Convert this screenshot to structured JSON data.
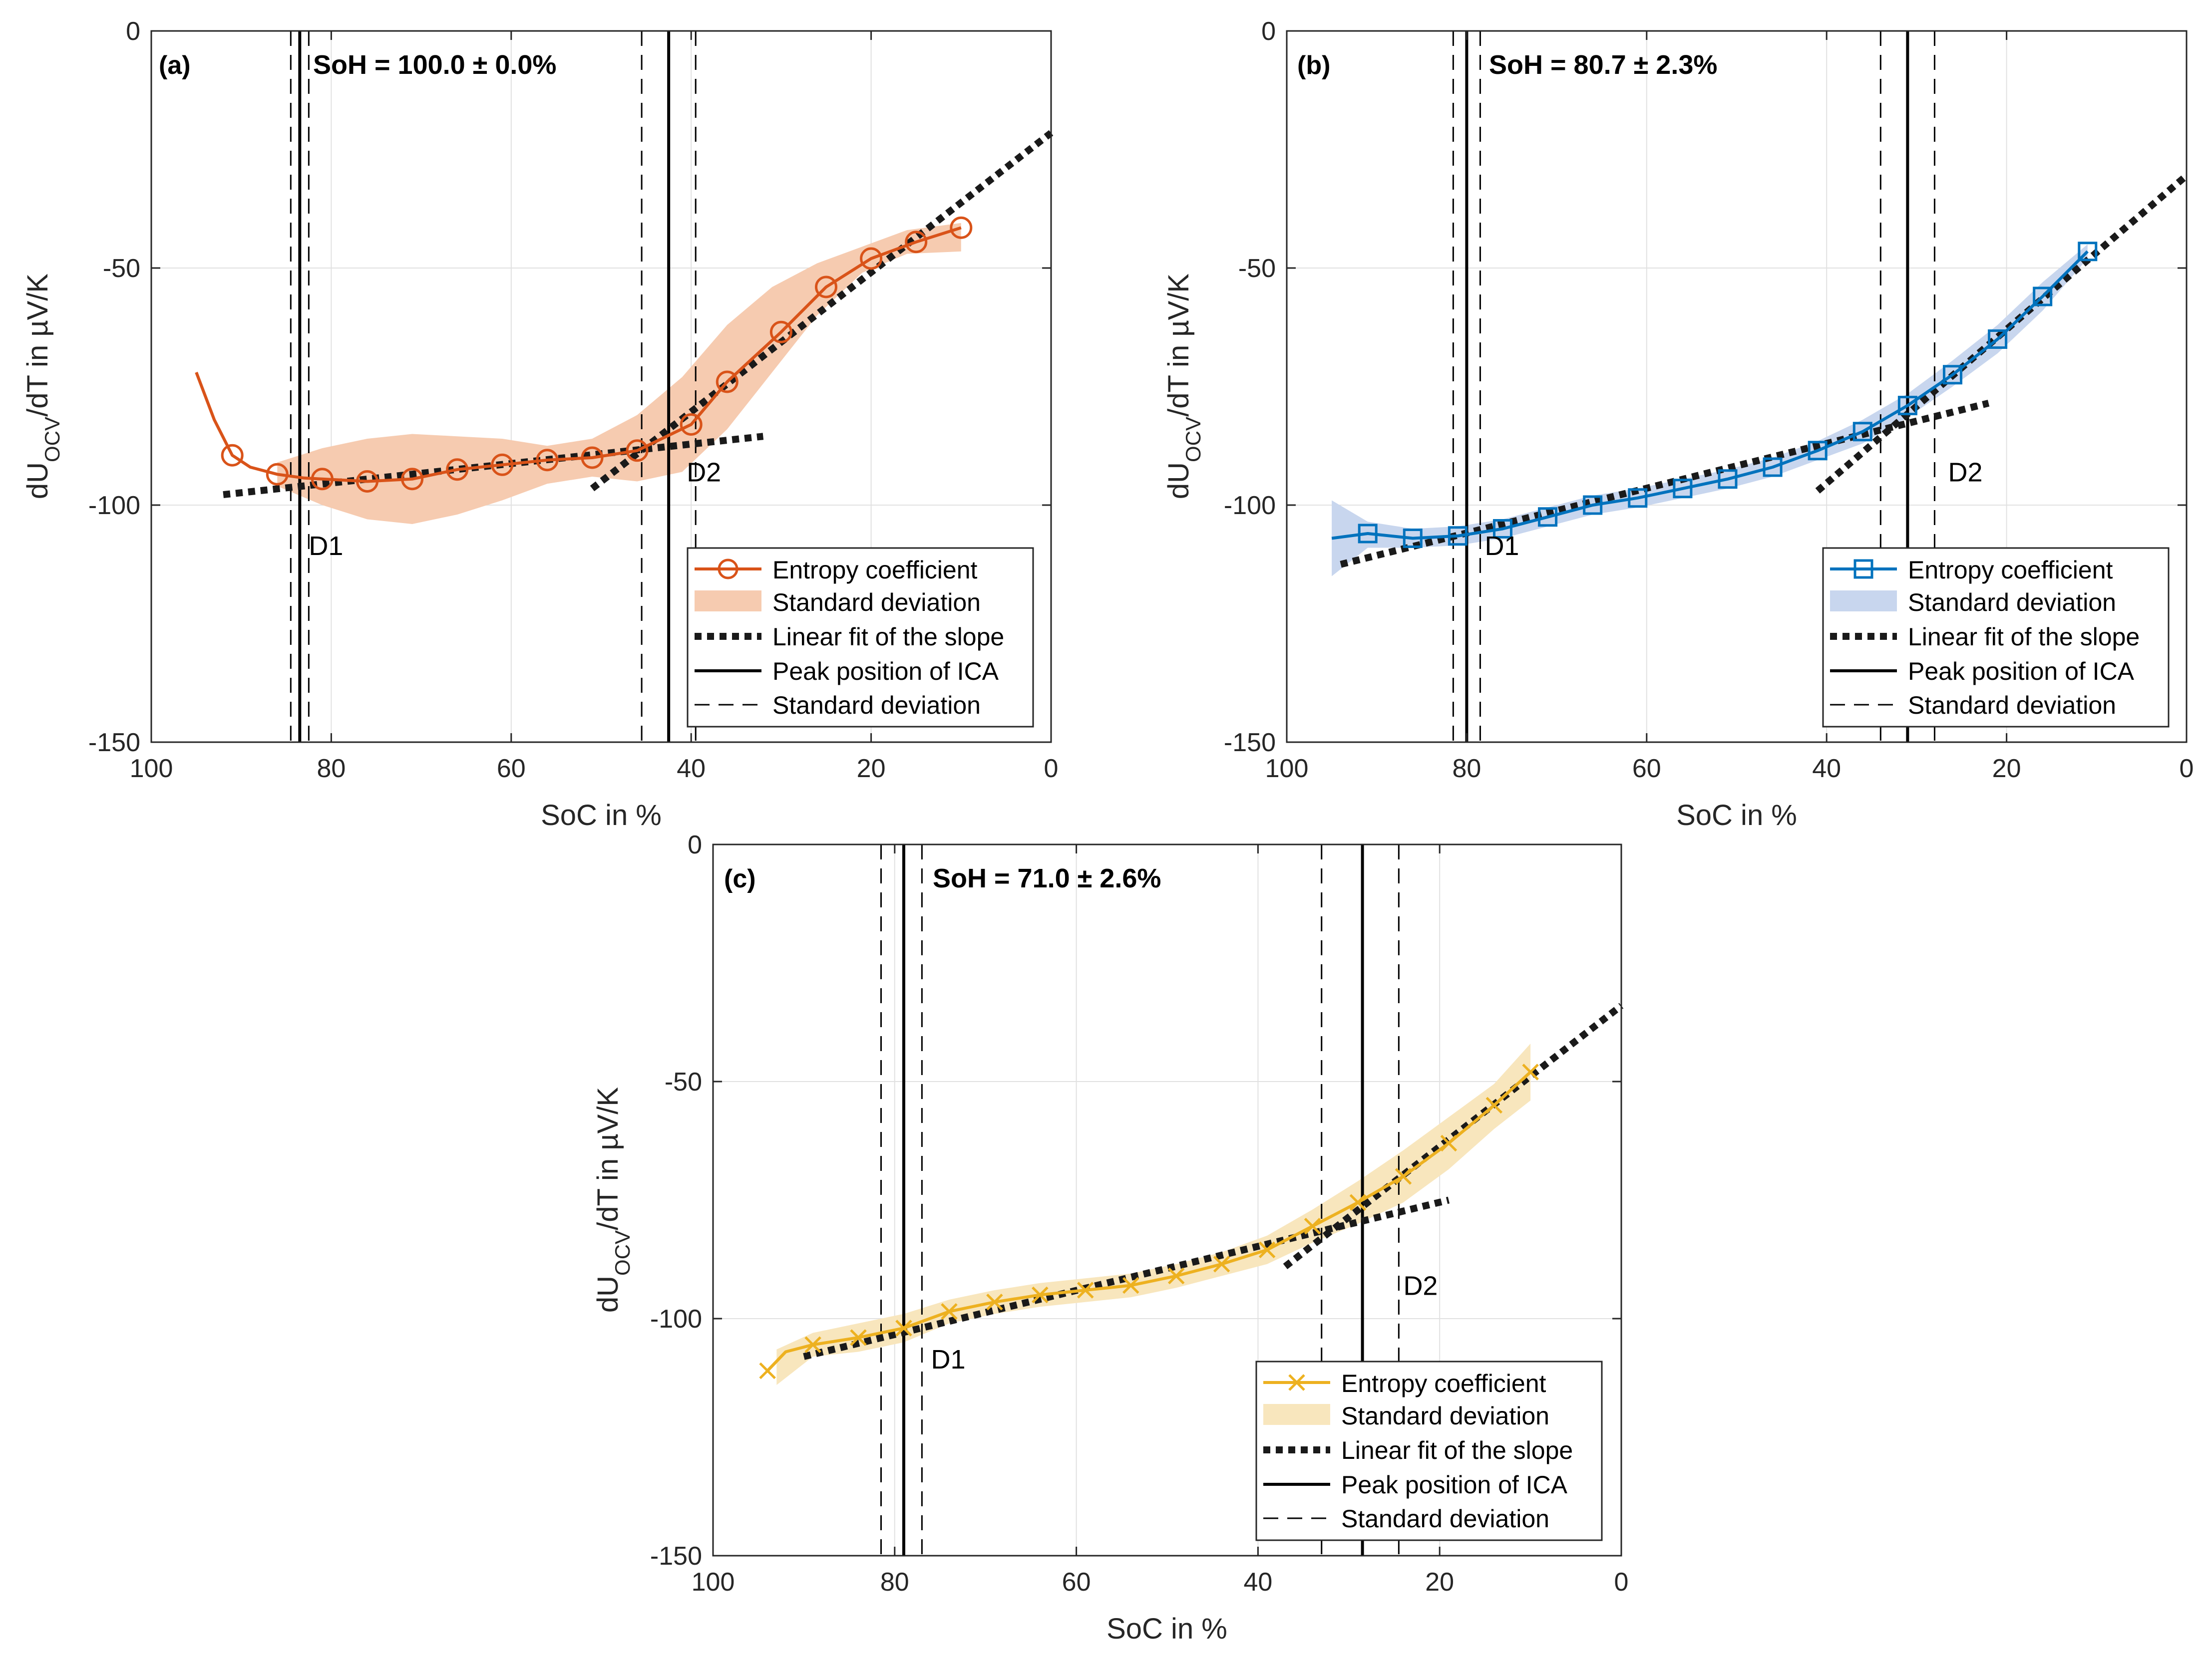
{
  "colors": {
    "grid": "#e1e1e1",
    "axis": "#262626",
    "ref": "#000000",
    "fit": "#1a1a1a"
  },
  "chart_data": [
    {
      "id": "a",
      "type": "line",
      "panel_label": "(a)",
      "soh_label": "SoH = 100.0 ± 0.0%",
      "xlabel": "SoC in %",
      "ylabel_main": "dU",
      "ylabel_sub": "OCV",
      "ylabel_rest": "/dT in µV/K",
      "xlim": [
        100,
        0
      ],
      "ylim": [
        -150,
        0
      ],
      "xticks": [
        100,
        80,
        60,
        40,
        20,
        0
      ],
      "yticks": [
        0,
        -50,
        -100,
        -150
      ],
      "color": "#d95319",
      "band_color": "#f6cbb0",
      "marker": "circle",
      "legend": [
        "Entropy coefficient",
        "Standard deviation",
        "Linear fit of the slope",
        "Peak position of ICA",
        "Standard deviation"
      ],
      "markers_x": [
        91,
        86,
        81,
        76,
        71,
        66,
        61,
        56,
        51,
        46,
        40,
        36,
        30,
        25,
        20,
        15,
        10
      ],
      "markers_y": [
        -89.5,
        -93.5,
        -94.5,
        -95,
        -94.5,
        -92.5,
        -91.5,
        -90.5,
        -90,
        -88.5,
        -83,
        -74,
        -63.5,
        -54,
        -48,
        -44.5,
        -41.5
      ],
      "curve_x": [
        95,
        93,
        91,
        89,
        86,
        83,
        81,
        76,
        71,
        66,
        61,
        56,
        51,
        46,
        40,
        36,
        30,
        25,
        20,
        15,
        10
      ],
      "curve_y": [
        -72,
        -82,
        -89.5,
        -92,
        -93.5,
        -94.3,
        -94.5,
        -95,
        -94.5,
        -92.5,
        -91.5,
        -90.5,
        -90,
        -88.5,
        -83,
        -74,
        -63.5,
        -54,
        -48,
        -44.5,
        -41.5
      ],
      "band_x": [
        86,
        81,
        76,
        71,
        66,
        61,
        56,
        51,
        46,
        41,
        36,
        31,
        26,
        21,
        16,
        10
      ],
      "band_upper": [
        -91,
        -88,
        -86,
        -85,
        -85.5,
        -86,
        -87.5,
        -86,
        -81,
        -73,
        -62,
        -54,
        -49,
        -45.5,
        -42,
        -40.5
      ],
      "band_lower": [
        -96,
        -100,
        -103,
        -104,
        -102,
        -99,
        -95.5,
        -94,
        -95,
        -93,
        -84,
        -72,
        -60,
        -51,
        -47,
        -46.5
      ],
      "fit1": [
        [
          92,
          -97.8
        ],
        [
          32,
          -85.5
        ]
      ],
      "fit2": [
        [
          51,
          -96.5
        ],
        [
          0,
          -21.5
        ]
      ],
      "d1": {
        "center": 83.5,
        "std": [
          84.5,
          82.5
        ],
        "label": "D1",
        "label_x": 82.5,
        "label_y": -110.5
      },
      "d2": {
        "center": 42.5,
        "std": [
          45.5,
          39.5
        ],
        "label": "D2",
        "label_x": 40.5,
        "label_y": -95
      }
    },
    {
      "id": "b",
      "type": "line",
      "panel_label": "(b)",
      "soh_label": "SoH = 80.7 ± 2.3%",
      "xlabel": "SoC in %",
      "ylabel_main": "dU",
      "ylabel_sub": "OCV",
      "ylabel_rest": "/dT in µV/K",
      "xlim": [
        100,
        0
      ],
      "ylim": [
        -150,
        0
      ],
      "xticks": [
        100,
        80,
        60,
        40,
        20,
        0
      ],
      "yticks": [
        0,
        -50,
        -100,
        -150
      ],
      "color": "#0072bd",
      "band_color": "#c8d6ee",
      "marker": "square",
      "legend": [
        "Entropy coefficient",
        "Standard deviation",
        "Linear fit of the slope",
        "Peak position of ICA",
        "Standard deviation"
      ],
      "markers_x": [
        91,
        86,
        81,
        76,
        71,
        66,
        61,
        56,
        51,
        46,
        41,
        36,
        31,
        26,
        21,
        16,
        11
      ],
      "markers_y": [
        -106,
        -107,
        -106.5,
        -105,
        -102.5,
        -100,
        -98.5,
        -96.5,
        -94.5,
        -92,
        -88.5,
        -84.5,
        -79,
        -72.5,
        -65,
        -56,
        -46.5
      ],
      "curve_x": [
        95,
        91,
        86,
        81,
        76,
        71,
        66,
        61,
        56,
        51,
        46,
        41,
        36,
        31,
        26,
        21,
        16,
        11
      ],
      "curve_y": [
        -107,
        -106,
        -107,
        -106.5,
        -105,
        -102.5,
        -100,
        -98.5,
        -96.5,
        -94.5,
        -92,
        -88.5,
        -84.5,
        -79,
        -72.5,
        -65,
        -56,
        -46.5
      ],
      "band_x": [
        95,
        91,
        86,
        81,
        76,
        71,
        66,
        61,
        56,
        51,
        46,
        41,
        36,
        31,
        26,
        21,
        16,
        11
      ],
      "band_upper": [
        -99,
        -103.5,
        -105,
        -104.5,
        -103,
        -100.5,
        -98,
        -96.5,
        -94.5,
        -92.5,
        -90,
        -86.5,
        -82,
        -76.5,
        -69.5,
        -62,
        -53,
        -45
      ],
      "band_lower": [
        -115,
        -109,
        -109,
        -108.5,
        -107,
        -104.5,
        -102,
        -100.5,
        -98.5,
        -96.5,
        -94,
        -90.5,
        -87,
        -81.5,
        -75,
        -68,
        -59,
        -48
      ],
      "fit1": [
        [
          94,
          -112.5
        ],
        [
          22,
          -78.5
        ]
      ],
      "fit2": [
        [
          41,
          -97
        ],
        [
          0,
          -30.5
        ]
      ],
      "d1": {
        "center": 80,
        "std": [
          81.5,
          78.5
        ],
        "label": "D1",
        "label_x": 78,
        "label_y": -110.5
      },
      "d2": {
        "center": 31,
        "std": [
          34,
          28
        ],
        "label": "D2",
        "label_x": 26.5,
        "label_y": -95
      }
    },
    {
      "id": "c",
      "type": "line",
      "panel_label": "(c)",
      "soh_label": "SoH = 71.0 ± 2.6%",
      "xlabel": "SoC in %",
      "ylabel_main": "dU",
      "ylabel_sub": "OCV",
      "ylabel_rest": "/dT in µV/K",
      "xlim": [
        100,
        0
      ],
      "ylim": [
        -150,
        0
      ],
      "xticks": [
        100,
        80,
        60,
        40,
        20,
        0
      ],
      "yticks": [
        0,
        -50,
        -100,
        -150
      ],
      "color": "#edb120",
      "band_color": "#f8e6bd",
      "marker": "x",
      "legend": [
        "Entropy coefficient",
        "Standard deviation",
        "Linear fit of the slope",
        "Peak position of ICA",
        "Standard deviation"
      ],
      "markers_x": [
        94,
        89,
        84,
        79,
        74,
        69,
        64,
        59,
        54,
        49,
        44,
        39,
        34,
        29,
        24,
        19,
        14,
        10
      ],
      "markers_y": [
        -111,
        -105.5,
        -104,
        -102,
        -98.5,
        -96.5,
        -95,
        -94,
        -93,
        -91,
        -88.5,
        -85.5,
        -80.5,
        -75.5,
        -70,
        -63,
        -55,
        -48
      ],
      "curve_x": [
        94,
        92,
        89,
        84,
        79,
        74,
        69,
        64,
        59,
        54,
        49,
        44,
        39,
        34,
        29,
        24,
        19,
        14,
        10
      ],
      "curve_y": [
        -111,
        -107,
        -105.5,
        -104,
        -102,
        -98.5,
        -96.5,
        -95,
        -94,
        -93,
        -91,
        -88.5,
        -85.5,
        -80.5,
        -75.5,
        -70,
        -63,
        -55,
        -48
      ],
      "band_x": [
        93,
        89,
        84,
        79,
        74,
        69,
        64,
        59,
        54,
        49,
        44,
        39,
        34,
        29,
        24,
        19,
        14,
        10
      ],
      "band_upper": [
        -106.5,
        -103,
        -101,
        -99,
        -96,
        -94,
        -92.5,
        -91.5,
        -90.5,
        -88.5,
        -86,
        -82.5,
        -77,
        -71,
        -64.5,
        -57.5,
        -50.5,
        -42
      ],
      "band_lower": [
        -114,
        -108,
        -107,
        -105,
        -101,
        -99,
        -97.5,
        -96.5,
        -95.5,
        -93.5,
        -91,
        -88.5,
        -84,
        -80,
        -75.5,
        -68.5,
        -60,
        -54
      ],
      "fit1": [
        [
          90,
          -108
        ],
        [
          19,
          -75
        ]
      ],
      "fit2": [
        [
          37,
          -89
        ],
        [
          0,
          -34
        ]
      ],
      "d1": {
        "center": 79,
        "std": [
          81.5,
          77
        ],
        "label": "D1",
        "label_x": 76,
        "label_y": -110.5
      },
      "d2": {
        "center": 28.5,
        "std": [
          33,
          24.5
        ],
        "label": "D2",
        "label_x": 24,
        "label_y": -95
      }
    }
  ]
}
